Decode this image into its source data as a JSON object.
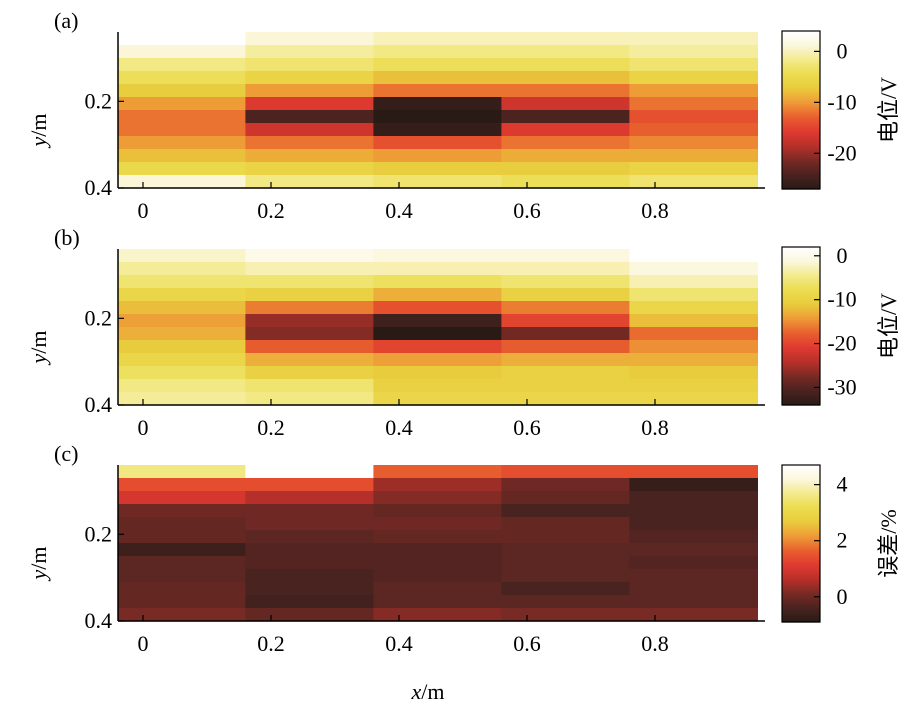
{
  "figure": {
    "xlabel": "x/m",
    "xlabel_var": "x",
    "xlabel_unit": "/m",
    "ylabel": "y/m",
    "ylabel_var": "y",
    "ylabel_unit": "/m"
  },
  "colormap": [
    "#2a1a16",
    "#4a2320",
    "#7a2a24",
    "#b8302a",
    "#e03a30",
    "#e8602e",
    "#ee9a36",
    "#e8cc3c",
    "#ecdc50",
    "#f3ea8c",
    "#fbf7dc",
    "#ffffff"
  ],
  "chart_data": [
    {
      "type": "heatmap",
      "panel_label": "(a)",
      "x_edges": [
        -0.04,
        0.16,
        0.36,
        0.56,
        0.76,
        0.96
      ],
      "y_edges": [
        0.04,
        0.07,
        0.1,
        0.13,
        0.16,
        0.19,
        0.22,
        0.25,
        0.28,
        0.31,
        0.34,
        0.37,
        0.4
      ],
      "x_ticks": [
        "0",
        "0.2",
        "0.4",
        "0.6",
        "0.8"
      ],
      "x_tick_values": [
        0,
        0.2,
        0.4,
        0.6,
        0.8
      ],
      "y_ticks": [
        "0.2",
        "0.4"
      ],
      "y_tick_values": [
        0.2,
        0.4
      ],
      "colorbar": {
        "min": -27,
        "max": 4,
        "ticks": [
          "0",
          "-10",
          "-20"
        ],
        "tick_values": [
          0,
          -10,
          -20
        ],
        "label": "电位/V"
      },
      "values": [
        [
          4,
          1,
          0,
          0,
          0
        ],
        [
          1,
          -1,
          -2,
          -2,
          -1
        ],
        [
          -2,
          -3,
          -4,
          -4,
          -3
        ],
        [
          -4,
          -6,
          -8,
          -8,
          -6
        ],
        [
          -7,
          -10,
          -12,
          -12,
          -10
        ],
        [
          -10,
          -16,
          -26,
          -17,
          -12
        ],
        [
          -12,
          -24,
          -27,
          -24,
          -14
        ],
        [
          -12,
          -17,
          -26,
          -16,
          -13
        ],
        [
          -10,
          -12,
          -14,
          -12,
          -11
        ],
        [
          -8,
          -9,
          -10,
          -9,
          -9
        ],
        [
          -5,
          -6,
          -7,
          -7,
          -6
        ],
        [
          1,
          -2,
          -3,
          -4,
          -3
        ]
      ]
    },
    {
      "type": "heatmap",
      "panel_label": "(b)",
      "x_edges": [
        -0.04,
        0.16,
        0.36,
        0.56,
        0.76,
        0.96
      ],
      "y_edges": [
        0.04,
        0.07,
        0.1,
        0.13,
        0.16,
        0.19,
        0.22,
        0.25,
        0.28,
        0.31,
        0.34,
        0.37,
        0.4
      ],
      "x_ticks": [
        "0",
        "0.2",
        "0.4",
        "0.6",
        "0.8"
      ],
      "x_tick_values": [
        0,
        0.2,
        0.4,
        0.6,
        0.8
      ],
      "y_ticks": [
        "0.2",
        "0.4"
      ],
      "y_tick_values": [
        0.2,
        0.4
      ],
      "colorbar": {
        "min": -34,
        "max": 2,
        "ticks": [
          "0",
          "-10",
          "-20",
          "-30"
        ],
        "tick_values": [
          0,
          -10,
          -20,
          -30
        ],
        "label": "电位/V"
      },
      "values": [
        [
          -2,
          0,
          -1,
          -1,
          2
        ],
        [
          -4,
          -3,
          -3,
          -3,
          -1
        ],
        [
          -6,
          -6,
          -7,
          -6,
          -3
        ],
        [
          -9,
          -10,
          -13,
          -10,
          -6
        ],
        [
          -12,
          -16,
          -19,
          -16,
          -9
        ],
        [
          -14,
          -26,
          -32,
          -20,
          -12
        ],
        [
          -13,
          -27,
          -34,
          -28,
          -17
        ],
        [
          -11,
          -18,
          -20,
          -18,
          -15
        ],
        [
          -9,
          -13,
          -14,
          -13,
          -13
        ],
        [
          -7,
          -10,
          -11,
          -10,
          -11
        ],
        [
          -5,
          -6,
          -10,
          -10,
          -10
        ],
        [
          -4,
          -5,
          -9,
          -9,
          -9
        ]
      ]
    },
    {
      "type": "heatmap",
      "panel_label": "(c)",
      "x_edges": [
        -0.04,
        0.16,
        0.36,
        0.56,
        0.76,
        0.96
      ],
      "y_edges": [
        0.04,
        0.07,
        0.1,
        0.13,
        0.16,
        0.19,
        0.22,
        0.25,
        0.28,
        0.31,
        0.34,
        0.37,
        0.4
      ],
      "x_ticks": [
        "0",
        "0.2",
        "0.4",
        "0.6",
        "0.8"
      ],
      "x_tick_values": [
        0,
        0.2,
        0.4,
        0.6,
        0.8
      ],
      "y_ticks": [
        "0.2",
        "0.4"
      ],
      "y_tick_values": [
        0.2,
        0.4
      ],
      "colorbar": {
        "min": -0.9,
        "max": 4.7,
        "ticks": [
          "4",
          "2",
          "0"
        ],
        "tick_values": [
          4,
          2,
          0
        ],
        "label": "误差/%"
      },
      "values": [
        [
          3.6,
          4.7,
          1.6,
          1.4,
          1.4
        ],
        [
          1.4,
          1.4,
          0.4,
          0.0,
          -0.7
        ],
        [
          1.0,
          0.6,
          0.2,
          -0.1,
          -0.4
        ],
        [
          0.0,
          0.0,
          -0.1,
          -0.4,
          -0.4
        ],
        [
          -0.1,
          0.0,
          0.0,
          -0.1,
          -0.4
        ],
        [
          -0.1,
          -0.2,
          -0.1,
          -0.1,
          -0.3
        ],
        [
          -0.6,
          -0.3,
          -0.3,
          -0.2,
          -0.2
        ],
        [
          -0.2,
          -0.3,
          -0.3,
          -0.2,
          -0.3
        ],
        [
          -0.2,
          -0.4,
          -0.3,
          -0.2,
          -0.2
        ],
        [
          -0.1,
          -0.4,
          -0.2,
          -0.4,
          -0.2
        ],
        [
          -0.1,
          -0.5,
          -0.2,
          -0.2,
          -0.2
        ],
        [
          0.1,
          -0.1,
          0.2,
          0.1,
          0.1
        ]
      ]
    }
  ]
}
